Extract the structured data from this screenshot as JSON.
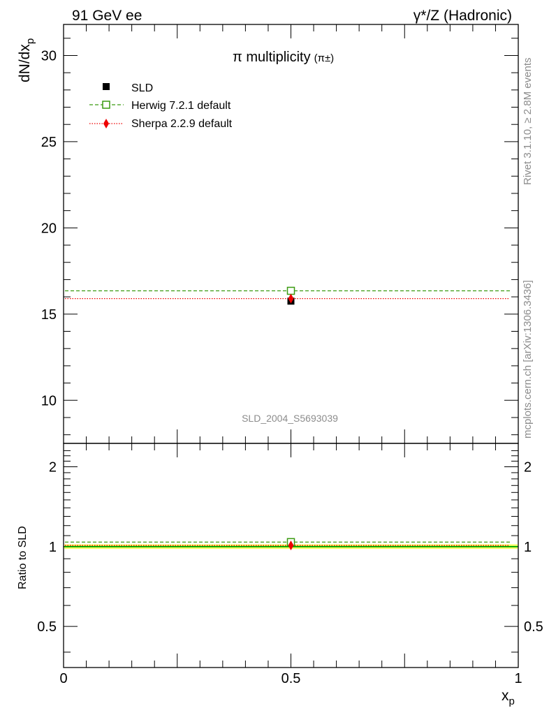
{
  "header": {
    "left": "91 GeV ee",
    "right": "γ*/Z (Hadronic)"
  },
  "side_labels": {
    "rivet": "Rivet 3.1.10, ≥ 2.8M events",
    "mcplots": "mcplots.cern.ch [arXiv:1306.3436]"
  },
  "colors": {
    "sld": "#000000",
    "herwig": "#3a9a10",
    "sherpa": "#ee0000",
    "ratio_band": "#ffff66",
    "ratio_line": "#00aa00",
    "watermark": "#8c8c8c"
  },
  "chart_data": [
    {
      "type": "scatter",
      "title": "π multiplicity",
      "title_suffix": "(π±)",
      "ylabel": "dN/dx",
      "ylabel_sub": "p",
      "watermark": "SLD_2004_S5693039",
      "xlim": [
        0,
        1
      ],
      "ylim": [
        7.5,
        31.8
      ],
      "y_ticks": [
        10,
        15,
        20,
        25,
        30
      ],
      "series": [
        {
          "name": "SLD",
          "style": "square-filled",
          "x": [
            0.5
          ],
          "y": [
            15.75
          ]
        },
        {
          "name": "Herwig 7.2.1 default",
          "style": "square-open-dashed",
          "x": [
            0.5
          ],
          "y": [
            16.35
          ]
        },
        {
          "name": "Sherpa 2.2.9 default",
          "style": "diamond-dotted",
          "x": [
            0.5
          ],
          "y": [
            15.9
          ]
        }
      ]
    },
    {
      "type": "line",
      "ylabel": "Ratio to SLD",
      "xlabel": "x",
      "xlabel_sub": "p",
      "xlim": [
        0,
        1
      ],
      "x_ticks": [
        0,
        0.5,
        1
      ],
      "x_tick_labels": [
        "0",
        "0.5",
        "1"
      ],
      "ylim": [
        0.35,
        2.45
      ],
      "y_scale": "log",
      "y_ticks": [
        0.5,
        1,
        2
      ],
      "y_tick_labels": [
        "0.5",
        "1",
        "2"
      ],
      "series": [
        {
          "name": "SLD",
          "x": [
            0.5
          ],
          "y": [
            1.0
          ]
        },
        {
          "name": "Herwig 7.2.1 default",
          "x": [
            0.5
          ],
          "y": [
            1.04
          ]
        },
        {
          "name": "Sherpa 2.2.9 default",
          "x": [
            0.5
          ],
          "y": [
            1.01
          ]
        }
      ]
    }
  ]
}
